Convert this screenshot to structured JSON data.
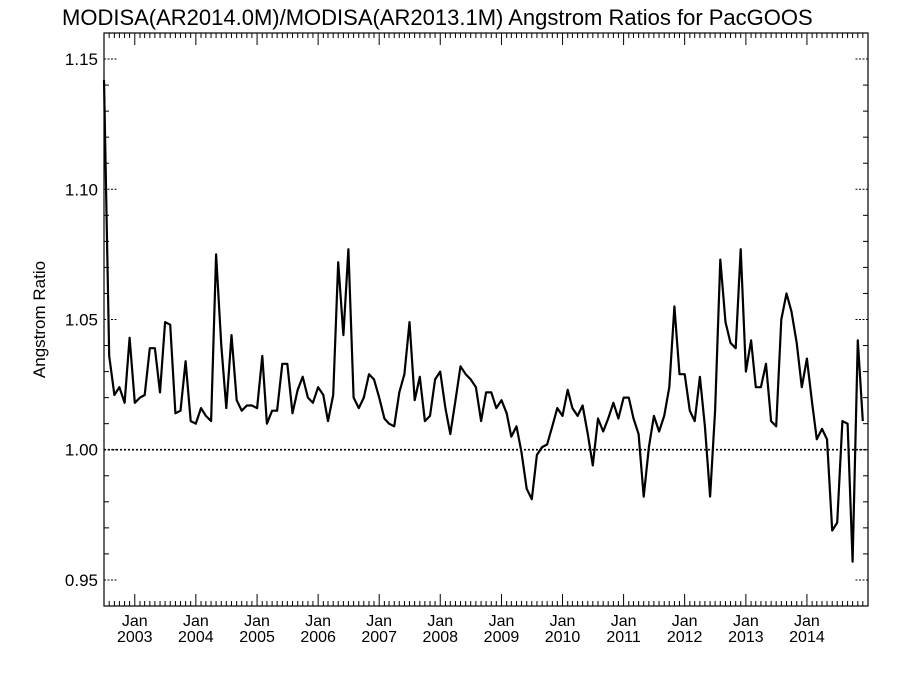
{
  "chart_data": {
    "type": "line",
    "title": "MODISA(AR2014.0M)/MODISA(AR2013.1M)  Angstrom Ratios for PacGOOS",
    "ylabel": "Angstrom Ratio",
    "xlabel": "",
    "ylim": [
      0.94,
      1.16
    ],
    "yticks": [
      0.95,
      1.0,
      1.05,
      1.1,
      1.15
    ],
    "ytick_labels": [
      "0.95",
      "1.00",
      "1.05",
      "1.10",
      "1.15"
    ],
    "xlim": [
      "2002-07-01",
      "2015-01-01"
    ],
    "xticks": [
      {
        "date": "2003-01-01",
        "line1": "Jan",
        "line2": "2003"
      },
      {
        "date": "2004-01-01",
        "line1": "Jan",
        "line2": "2004"
      },
      {
        "date": "2005-01-01",
        "line1": "Jan",
        "line2": "2005"
      },
      {
        "date": "2006-01-01",
        "line1": "Jan",
        "line2": "2006"
      },
      {
        "date": "2007-01-01",
        "line1": "Jan",
        "line2": "2007"
      },
      {
        "date": "2008-01-01",
        "line1": "Jan",
        "line2": "2008"
      },
      {
        "date": "2009-01-01",
        "line1": "Jan",
        "line2": "2009"
      },
      {
        "date": "2010-01-01",
        "line1": "Jan",
        "line2": "2010"
      },
      {
        "date": "2011-01-01",
        "line1": "Jan",
        "line2": "2011"
      },
      {
        "date": "2012-01-01",
        "line1": "Jan",
        "line2": "2012"
      },
      {
        "date": "2013-01-01",
        "line1": "Jan",
        "line2": "2013"
      },
      {
        "date": "2014-01-01",
        "line1": "Jan",
        "line2": "2014"
      }
    ],
    "reference_line": {
      "y": 1.0,
      "style": "dotted"
    },
    "grid": false,
    "series": [
      {
        "color": "#000000",
        "x": [
          "2002-07",
          "2002-08",
          "2002-09",
          "2002-10",
          "2002-11",
          "2002-12",
          "2003-01",
          "2003-02",
          "2003-03",
          "2003-04",
          "2003-05",
          "2003-06",
          "2003-07",
          "2003-08",
          "2003-09",
          "2003-10",
          "2003-11",
          "2003-12",
          "2004-01",
          "2004-02",
          "2004-03",
          "2004-04",
          "2004-05",
          "2004-06",
          "2004-07",
          "2004-08",
          "2004-09",
          "2004-10",
          "2004-11",
          "2004-12",
          "2005-01",
          "2005-02",
          "2005-03",
          "2005-04",
          "2005-05",
          "2005-06",
          "2005-07",
          "2005-08",
          "2005-09",
          "2005-10",
          "2005-11",
          "2005-12",
          "2006-01",
          "2006-02",
          "2006-03",
          "2006-04",
          "2006-05",
          "2006-06",
          "2006-07",
          "2006-08",
          "2006-09",
          "2006-10",
          "2006-11",
          "2006-12",
          "2007-01",
          "2007-02",
          "2007-03",
          "2007-04",
          "2007-05",
          "2007-06",
          "2007-07",
          "2007-08",
          "2007-09",
          "2007-10",
          "2007-11",
          "2007-12",
          "2008-01",
          "2008-02",
          "2008-03",
          "2008-04",
          "2008-05",
          "2008-06",
          "2008-07",
          "2008-08",
          "2008-09",
          "2008-10",
          "2008-11",
          "2008-12",
          "2009-01",
          "2009-02",
          "2009-03",
          "2009-04",
          "2009-05",
          "2009-06",
          "2009-07",
          "2009-08",
          "2009-09",
          "2009-10",
          "2009-11",
          "2009-12",
          "2010-01",
          "2010-02",
          "2010-03",
          "2010-04",
          "2010-05",
          "2010-06",
          "2010-07",
          "2010-08",
          "2010-09",
          "2010-10",
          "2010-11",
          "2010-12",
          "2011-01",
          "2011-02",
          "2011-03",
          "2011-04",
          "2011-05",
          "2011-06",
          "2011-07",
          "2011-08",
          "2011-09",
          "2011-10",
          "2011-11",
          "2011-12",
          "2012-01",
          "2012-02",
          "2012-03",
          "2012-04",
          "2012-05",
          "2012-06",
          "2012-07",
          "2012-08",
          "2012-09",
          "2012-10",
          "2012-11",
          "2012-12",
          "2013-01",
          "2013-02",
          "2013-03",
          "2013-04",
          "2013-05",
          "2013-06",
          "2013-07",
          "2013-08",
          "2013-09",
          "2013-10",
          "2013-11",
          "2013-12",
          "2014-01",
          "2014-02",
          "2014-03",
          "2014-04",
          "2014-05",
          "2014-06",
          "2014-07",
          "2014-08",
          "2014-09",
          "2014-10",
          "2014-11",
          "2014-12"
        ],
        "values": [
          1.142,
          1.036,
          1.021,
          1.024,
          1.018,
          1.043,
          1.018,
          1.02,
          1.021,
          1.039,
          1.039,
          1.022,
          1.049,
          1.048,
          1.014,
          1.015,
          1.034,
          1.011,
          1.01,
          1.016,
          1.013,
          1.011,
          1.075,
          1.04,
          1.016,
          1.044,
          1.019,
          1.015,
          1.017,
          1.017,
          1.016,
          1.036,
          1.01,
          1.015,
          1.015,
          1.033,
          1.033,
          1.014,
          1.023,
          1.028,
          1.02,
          1.018,
          1.024,
          1.021,
          1.011,
          1.021,
          1.072,
          1.044,
          1.077,
          1.02,
          1.016,
          1.02,
          1.029,
          1.027,
          1.02,
          1.012,
          1.01,
          1.009,
          1.022,
          1.029,
          1.049,
          1.019,
          1.028,
          1.011,
          1.013,
          1.027,
          1.03,
          1.016,
          1.006,
          1.019,
          1.032,
          1.029,
          1.027,
          1.024,
          1.011,
          1.022,
          1.022,
          1.016,
          1.019,
          1.014,
          1.005,
          1.009,
          0.999,
          0.985,
          0.981,
          0.998,
          1.001,
          1.002,
          1.009,
          1.016,
          1.013,
          1.023,
          1.016,
          1.013,
          1.017,
          1.006,
          0.994,
          1.012,
          1.007,
          1.012,
          1.018,
          1.012,
          1.02,
          1.02,
          1.012,
          1.006,
          0.982,
          1.001,
          1.013,
          1.007,
          1.013,
          1.024,
          1.055,
          1.029,
          1.029,
          1.015,
          1.011,
          1.028,
          1.009,
          0.982,
          1.015,
          1.073,
          1.049,
          1.041,
          1.039,
          1.077,
          1.03,
          1.042,
          1.024,
          1.024,
          1.033,
          1.011,
          1.009,
          1.05,
          1.06,
          1.053,
          1.041,
          1.024,
          1.035,
          1.018,
          1.004,
          1.008,
          1.004,
          0.969,
          0.972,
          1.011,
          1.01,
          0.957,
          1.042,
          1.011
        ]
      }
    ]
  }
}
